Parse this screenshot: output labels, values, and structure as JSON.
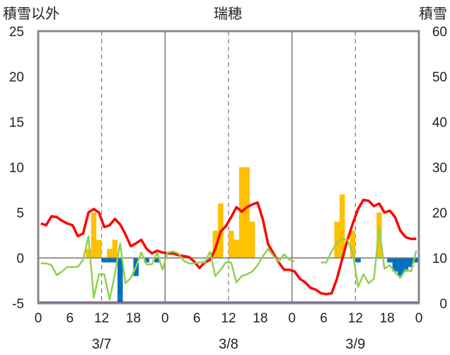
{
  "chart_data": {
    "type": "bar+line",
    "title": "瑞穂",
    "ylabel_left": "積雪以外",
    "ylabel_right": "積雪",
    "ylim_left": [
      -5,
      25
    ],
    "ylim_right": [
      0,
      60
    ],
    "yticks_left": [
      "25",
      "20",
      "15",
      "10",
      "5",
      "0",
      "-5"
    ],
    "yticks_right": [
      "60",
      "50",
      "40",
      "30",
      "20",
      "10",
      "0"
    ],
    "xticks": [
      "0",
      "6",
      "12",
      "18",
      "0",
      "6",
      "12",
      "18",
      "0",
      "6",
      "12",
      "18",
      "0"
    ],
    "days": [
      "3/7",
      "3/8",
      "3/9"
    ],
    "grid": "vertical dashed at hours 12; solid at day boundaries",
    "series": [
      {
        "kind": "bar",
        "color": "#ffc000",
        "axis": "left",
        "points": [
          [
            9,
            1
          ],
          [
            10,
            5
          ],
          [
            11,
            2
          ],
          [
            13,
            1
          ],
          [
            14,
            2
          ],
          [
            33,
            3
          ],
          [
            34,
            6
          ],
          [
            36,
            3
          ],
          [
            37,
            2
          ],
          [
            38,
            10
          ],
          [
            39,
            10
          ],
          [
            40,
            4
          ],
          [
            56,
            4
          ],
          [
            57,
            7
          ],
          [
            59,
            3
          ],
          [
            64,
            5
          ]
        ]
      },
      {
        "kind": "bar",
        "color": "#0070c0",
        "axis": "left",
        "points": [
          [
            12,
            -0.5
          ],
          [
            13,
            -0.5
          ],
          [
            14,
            -0.5
          ],
          [
            15,
            -5
          ],
          [
            18,
            -2
          ],
          [
            20,
            -0.5
          ],
          [
            22,
            -0.5
          ],
          [
            60,
            -0.5
          ],
          [
            66,
            -0.5
          ],
          [
            67,
            -1.5
          ],
          [
            68,
            -2
          ],
          [
            69,
            -1.5
          ],
          [
            70,
            -1
          ],
          [
            71,
            -0.5
          ]
        ]
      },
      {
        "kind": "line",
        "color": "#ff0000",
        "axis": "left",
        "x": [
          0,
          1,
          2,
          3,
          4,
          5,
          6,
          7,
          8,
          9,
          10,
          11,
          12,
          13,
          14,
          15,
          16,
          17,
          18,
          19,
          20,
          21,
          22,
          23,
          24,
          25,
          26,
          27,
          28,
          29,
          30,
          31,
          32,
          33,
          34,
          35,
          36,
          37,
          38,
          39,
          40,
          41,
          42,
          43,
          44,
          45,
          46,
          47,
          48,
          49,
          50,
          51,
          52,
          53,
          54,
          55,
          56,
          57,
          58,
          59,
          60,
          61,
          62,
          63,
          64,
          65,
          66,
          67,
          68,
          69,
          70,
          71
        ],
        "y": [
          3.8,
          3.6,
          4.6,
          4.5,
          4.1,
          3.8,
          3.6,
          2.4,
          2.7,
          5.0,
          5.4,
          5.0,
          3.4,
          3.6,
          4.3,
          3.7,
          2.6,
          1.3,
          1.6,
          2.0,
          1.0,
          0.5,
          0.8,
          0.6,
          0.5,
          0.5,
          0.3,
          0.2,
          0.1,
          -0.4,
          -1.1,
          -0.5,
          -0.2,
          1.0,
          2.9,
          3.5,
          4.5,
          5.6,
          5.1,
          5.6,
          5.9,
          6.1,
          4.2,
          1.5,
          0.5,
          -0.5,
          -1.3,
          -1.3,
          -1.5,
          -2.3,
          -2.7,
          -3.3,
          -3.5,
          -3.9,
          -4.0,
          -3.9,
          -2.3,
          -0.1,
          2.0,
          3.8,
          5.4,
          6.4,
          6.3,
          5.7,
          6.0,
          5.0,
          5.2,
          4.5,
          3.0,
          2.3,
          2.1,
          2.1
        ]
      },
      {
        "kind": "line",
        "color": "#92d050",
        "axis": "left",
        "segments": [
          {
            "x": [
              0,
              1,
              2,
              3,
              4,
              5,
              6,
              7,
              8,
              9,
              10,
              11,
              12,
              13,
              14,
              15,
              16,
              17,
              18,
              19,
              20,
              21,
              22,
              23,
              24,
              25,
              26,
              27,
              28,
              29,
              30,
              31,
              32,
              33,
              34,
              35,
              36,
              37,
              38,
              39,
              40,
              41,
              42,
              43,
              44,
              45,
              46,
              47,
              48
            ],
            "y": [
              -0.6,
              -0.6,
              -0.8,
              -1.9,
              -1.5,
              -1.0,
              -1.0,
              -1.0,
              -0.2,
              2.4,
              -4.4,
              -1.8,
              -1.8,
              -4.6,
              -1.8,
              1.6,
              -2.8,
              -2.2,
              -1.0,
              0.6,
              -0.7,
              -0.7,
              0.6,
              -1.3,
              0.6,
              0.7,
              0.5,
              -0.3,
              -0.6,
              -0.6,
              -0.5,
              -0.5,
              0.7,
              -2.0,
              -1.3,
              -0.5,
              -0.5,
              -2.7,
              -2.0,
              -1.8,
              -1.5,
              -0.8,
              0.2,
              1.0,
              0.2,
              -0.4,
              0.4,
              -0.2,
              -0.4
            ]
          },
          {
            "x": [
              53,
              54,
              55,
              56,
              57,
              58,
              59,
              60,
              61,
              62,
              63,
              64,
              65,
              66,
              67,
              68,
              69,
              70,
              71
            ],
            "y": [
              -0.5,
              -0.5,
              0.7,
              1.7,
              2.1,
              2.0,
              0.5,
              -3.2,
              -1.8,
              -2.8,
              -2.3,
              3.3,
              -1.2,
              -0.8,
              -1.6,
              -2.2,
              -1.3,
              -1.5,
              0.8
            ]
          }
        ]
      },
      {
        "kind": "line",
        "color": "#7030a0",
        "axis": "right",
        "x": [
          0,
          72
        ],
        "y": [
          0,
          0
        ]
      }
    ]
  }
}
